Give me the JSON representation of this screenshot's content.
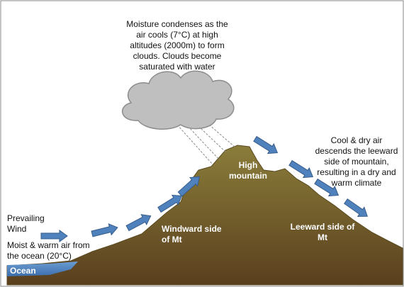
{
  "cloud_note": [
    "Moisture condenses as the",
    "air cools (7°C) at high",
    "altitudes (2000m) to form",
    "clouds. Clouds become",
    "saturated with water"
  ],
  "leeward_note": [
    "Cool & dry air",
    "descends the leeward",
    "side of mountain,",
    "resulting in a dry and",
    "warm climate"
  ],
  "peak_label": [
    "High",
    "mountain"
  ],
  "wind_label": [
    "Prevailing",
    "Wind"
  ],
  "ocean_note": [
    "Moist & warm air from",
    "the ocean (20°C)"
  ],
  "windward_label": [
    "Windward side",
    "of Mt"
  ],
  "leeward_label": [
    "Leeward side of",
    "Mt"
  ],
  "ocean_label": "Ocean"
}
